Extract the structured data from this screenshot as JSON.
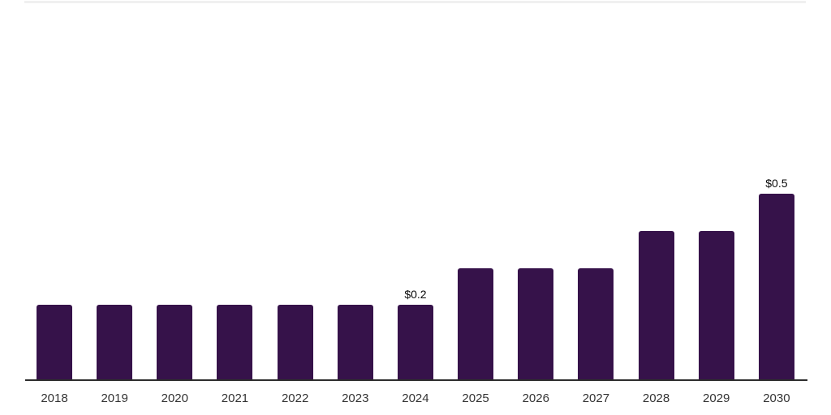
{
  "chart_data": {
    "type": "bar",
    "title": "",
    "xlabel": "",
    "ylabel": "",
    "categories": [
      "2018",
      "2019",
      "2020",
      "2021",
      "2022",
      "2023",
      "2024",
      "2025",
      "2026",
      "2027",
      "2028",
      "2029",
      "2030"
    ],
    "values": [
      0.2,
      0.2,
      0.2,
      0.2,
      0.2,
      0.2,
      0.2,
      0.3,
      0.3,
      0.3,
      0.4,
      0.4,
      0.5
    ],
    "data_labels": {
      "2024": "$0.2",
      "2030": "$0.5"
    },
    "ylim": [
      0,
      0.55
    ],
    "grid": false,
    "legend": false,
    "colors": {
      "bar": "#36124a",
      "axis": "#2d2d2d",
      "tick_label": "#333333",
      "data_label": "#0a0a0a",
      "top_divider": "#f0f0f0"
    }
  }
}
